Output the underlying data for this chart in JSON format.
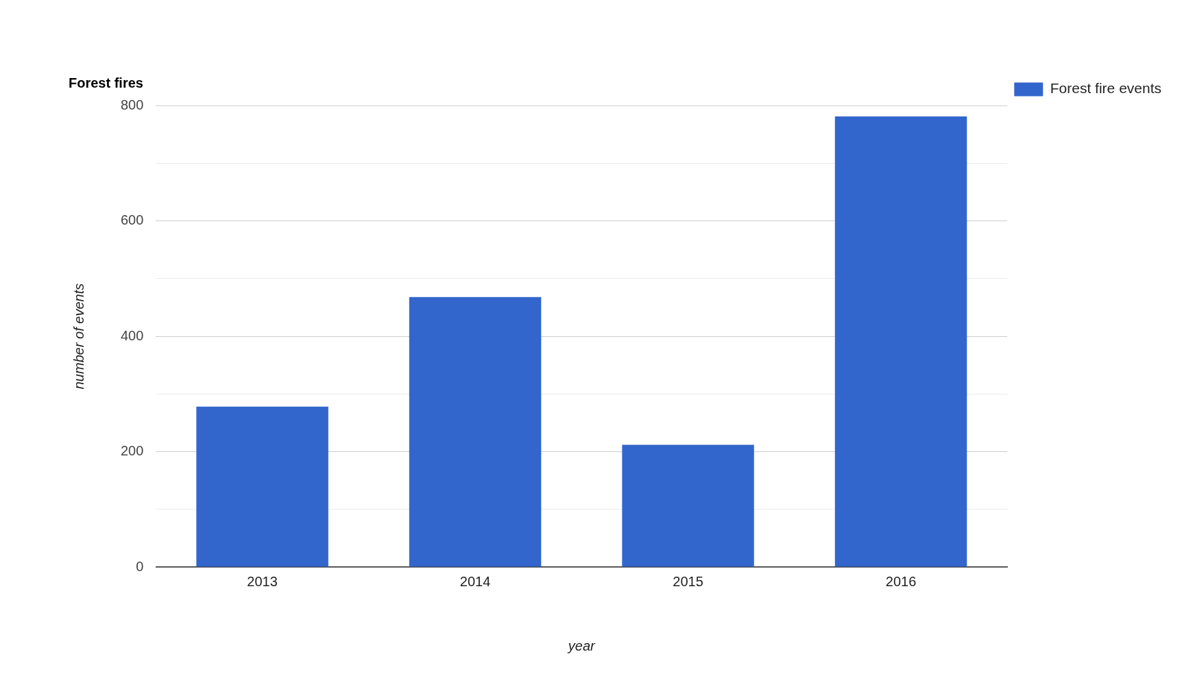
{
  "chart_data": {
    "type": "bar",
    "title": "Forest fires",
    "xlabel": "year",
    "ylabel": "number of events",
    "categories": [
      "2013",
      "2014",
      "2015",
      "2016"
    ],
    "series": [
      {
        "name": "Forest fire events",
        "color": "#3366cc",
        "values": [
          278,
          468,
          212,
          781
        ]
      }
    ],
    "ylim": [
      0,
      800
    ],
    "yticks": [
      0,
      {
        "value": 100,
        "label": null
      },
      200,
      {
        "value": 300,
        "label": null
      },
      400,
      {
        "value": 500,
        "label": null
      },
      600,
      {
        "value": 700,
        "label": null
      },
      800
    ],
    "grid": "y",
    "legend": "top right"
  }
}
